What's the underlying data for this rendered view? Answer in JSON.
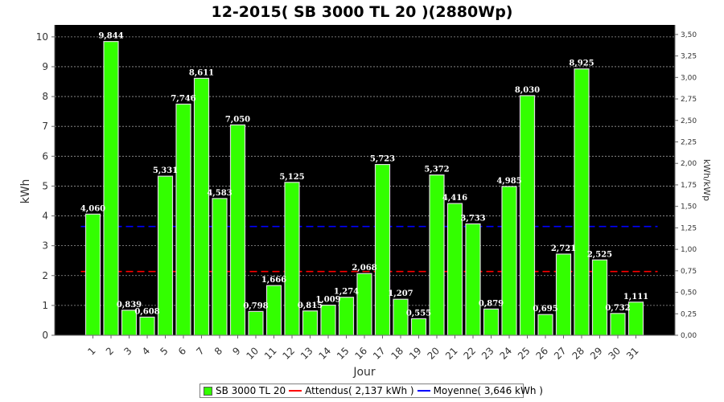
{
  "chart_data": {
    "type": "bar",
    "title": "12-2015( SB 3000 TL 20 )(2880Wp)",
    "xlabel": "Jour",
    "ylabel": "kWh",
    "y2label": "kWh/kWp",
    "ylim": [
      0,
      10.4
    ],
    "yticks": [
      "0",
      "1",
      "2",
      "3",
      "4",
      "5",
      "6",
      "7",
      "8",
      "9",
      "10"
    ],
    "y2ticks": [
      "0,00",
      "0,25",
      "0,50",
      "0,75",
      "1,00",
      "1,25",
      "1,50",
      "1,75",
      "2,00",
      "2,25",
      "2,50",
      "2,75",
      "3,00",
      "3,25",
      "3,50"
    ],
    "categories": [
      "1",
      "2",
      "3",
      "4",
      "5",
      "6",
      "7",
      "8",
      "9",
      "10",
      "11",
      "12",
      "13",
      "14",
      "15",
      "16",
      "17",
      "18",
      "19",
      "20",
      "21",
      "22",
      "23",
      "24",
      "25",
      "26",
      "27",
      "28",
      "29",
      "30",
      "31"
    ],
    "series": [
      {
        "name": "SB 3000 TL 20",
        "values": [
          4.06,
          9.844,
          0.839,
          0.608,
          5.331,
          7.746,
          8.611,
          4.583,
          7.05,
          0.798,
          1.666,
          5.125,
          0.815,
          1.009,
          1.274,
          2.068,
          5.723,
          1.207,
          0.555,
          5.372,
          4.416,
          3.733,
          0.879,
          4.985,
          8.03,
          0.695,
          2.721,
          8.925,
          2.525,
          0.732,
          1.111
        ],
        "labels": [
          "4,060",
          "9,844",
          "0,839",
          "0,608",
          "5,331",
          "7,746",
          "8,611",
          "4,583",
          "7,050",
          "0,798",
          "1,666",
          "5,125",
          "0,815",
          "1,009",
          "1,274",
          "2,068",
          "5,723",
          "1,207",
          "0,555",
          "5,372",
          "4,416",
          "3,733",
          "0,879",
          "4,985",
          "8,030",
          "0,695",
          "2,721",
          "8,925",
          "2,525",
          "0,732",
          "1,111"
        ],
        "color": "#33ff00"
      }
    ],
    "reference_lines": [
      {
        "name": "Attendus( 2,137 kWh )",
        "value": 2.137,
        "color": "#ff0000"
      },
      {
        "name": "Moyenne( 3,646 kWh )",
        "value": 3.646,
        "color": "#0000ff"
      }
    ],
    "grid": true,
    "legend": "bottom",
    "background": "#000000"
  }
}
